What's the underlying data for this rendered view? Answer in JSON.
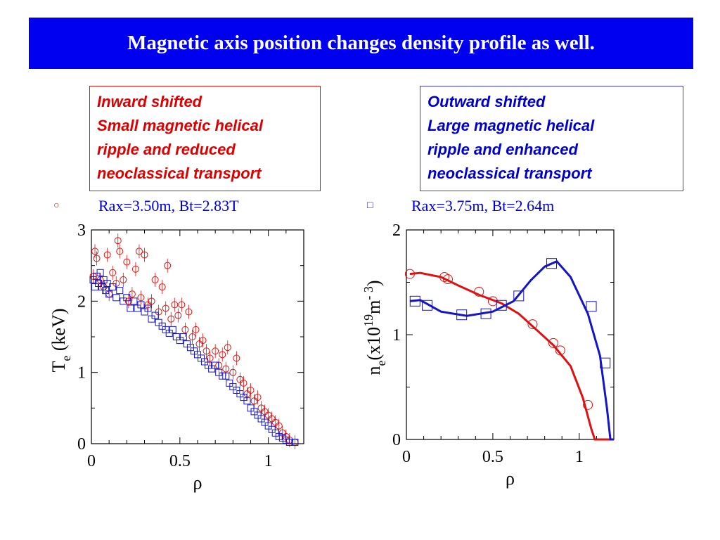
{
  "header": {
    "title": "Magnetic axis position changes density profile as well."
  },
  "boxes": {
    "inward": {
      "lines": [
        "Inward shifted",
        "Small magnetic helical",
        "ripple and reduced",
        "neoclassical transport"
      ]
    },
    "outward": {
      "lines": [
        "Outward shifted",
        "Large magnetic helical",
        "ripple and enhanced",
        "neoclassical transport"
      ]
    }
  },
  "legend": {
    "left": {
      "marker": "○",
      "label": "Rax=3.50m, Bt=2.83T"
    },
    "right": {
      "marker": "□",
      "label": "Rax=3.75m, Bt=2.64m"
    }
  },
  "colors": {
    "banner": "#0000f0",
    "red": "#e01010",
    "blue": "#1414c8"
  },
  "chart_data": [
    {
      "type": "scatter",
      "title": "",
      "xlabel": "ρ",
      "ylabel_main": "T",
      "ylabel_sub": "e",
      "ylabel_tail": " (keV)",
      "xlim": [
        0,
        1.2
      ],
      "ylim": [
        0,
        3
      ],
      "xticks": [
        0,
        0.5,
        1
      ],
      "xtick_labels": [
        "0",
        "0.5",
        "1"
      ],
      "yticks": [
        0,
        1,
        2,
        3
      ],
      "ytick_labels": [
        "0",
        "1",
        "2",
        "3"
      ],
      "grid": false,
      "series": [
        {
          "marker": "circle",
          "color": "#e01010",
          "points": [
            [
              0.01,
              2.35
            ],
            [
              0.02,
              2.7
            ],
            [
              0.03,
              2.6
            ],
            [
              0.05,
              2.3
            ],
            [
              0.07,
              2.2
            ],
            [
              0.09,
              2.65
            ],
            [
              0.1,
              2.1
            ],
            [
              0.12,
              2.4
            ],
            [
              0.14,
              2.25
            ],
            [
              0.15,
              2.85
            ],
            [
              0.16,
              2.7
            ],
            [
              0.18,
              2.3
            ],
            [
              0.2,
              2.55
            ],
            [
              0.21,
              2.0
            ],
            [
              0.23,
              2.1
            ],
            [
              0.25,
              2.45
            ],
            [
              0.27,
              2.7
            ],
            [
              0.28,
              2.05
            ],
            [
              0.3,
              2.65
            ],
            [
              0.32,
              1.95
            ],
            [
              0.34,
              2.0
            ],
            [
              0.36,
              2.3
            ],
            [
              0.38,
              1.85
            ],
            [
              0.4,
              2.2
            ],
            [
              0.42,
              1.9
            ],
            [
              0.43,
              2.5
            ],
            [
              0.45,
              1.75
            ],
            [
              0.47,
              1.95
            ],
            [
              0.49,
              1.8
            ],
            [
              0.51,
              1.95
            ],
            [
              0.53,
              1.6
            ],
            [
              0.55,
              1.85
            ],
            [
              0.57,
              1.5
            ],
            [
              0.59,
              1.6
            ],
            [
              0.61,
              1.4
            ],
            [
              0.63,
              1.45
            ],
            [
              0.65,
              1.3
            ],
            [
              0.67,
              1.2
            ],
            [
              0.7,
              1.3
            ],
            [
              0.72,
              1.1
            ],
            [
              0.74,
              1.25
            ],
            [
              0.76,
              1.05
            ],
            [
              0.77,
              1.35
            ],
            [
              0.8,
              1.0
            ],
            [
              0.82,
              1.2
            ],
            [
              0.84,
              0.9
            ],
            [
              0.86,
              0.85
            ],
            [
              0.88,
              0.7
            ],
            [
              0.9,
              0.75
            ],
            [
              0.92,
              0.6
            ],
            [
              0.94,
              0.65
            ],
            [
              0.96,
              0.5
            ],
            [
              0.98,
              0.45
            ],
            [
              1.0,
              0.4
            ],
            [
              1.02,
              0.35
            ],
            [
              1.04,
              0.3
            ],
            [
              1.06,
              0.25
            ],
            [
              1.08,
              0.15
            ],
            [
              1.1,
              0.1
            ],
            [
              1.12,
              0.05
            ],
            [
              1.15,
              0.02
            ]
          ]
        },
        {
          "marker": "square",
          "color": "#1414c8",
          "points": [
            [
              0.01,
              2.3
            ],
            [
              0.02,
              2.2
            ],
            [
              0.03,
              2.35
            ],
            [
              0.04,
              2.25
            ],
            [
              0.05,
              2.4
            ],
            [
              0.06,
              2.2
            ],
            [
              0.07,
              2.3
            ],
            [
              0.08,
              2.15
            ],
            [
              0.09,
              2.25
            ],
            [
              0.1,
              2.1
            ],
            [
              0.12,
              2.2
            ],
            [
              0.14,
              2.05
            ],
            [
              0.16,
              2.15
            ],
            [
              0.18,
              2.0
            ],
            [
              0.2,
              2.05
            ],
            [
              0.22,
              1.9
            ],
            [
              0.24,
              2.0
            ],
            [
              0.26,
              1.9
            ],
            [
              0.28,
              1.95
            ],
            [
              0.3,
              1.85
            ],
            [
              0.32,
              1.9
            ],
            [
              0.34,
              1.75
            ],
            [
              0.36,
              1.8
            ],
            [
              0.38,
              1.7
            ],
            [
              0.4,
              1.65
            ],
            [
              0.42,
              1.6
            ],
            [
              0.44,
              1.55
            ],
            [
              0.46,
              1.6
            ],
            [
              0.48,
              1.5
            ],
            [
              0.5,
              1.45
            ],
            [
              0.52,
              1.5
            ],
            [
              0.54,
              1.4
            ],
            [
              0.56,
              1.35
            ],
            [
              0.58,
              1.3
            ],
            [
              0.6,
              1.25
            ],
            [
              0.62,
              1.2
            ],
            [
              0.64,
              1.15
            ],
            [
              0.66,
              1.1
            ],
            [
              0.68,
              1.05
            ],
            [
              0.7,
              1.1
            ],
            [
              0.72,
              1.0
            ],
            [
              0.74,
              0.95
            ],
            [
              0.76,
              0.95
            ],
            [
              0.78,
              0.85
            ],
            [
              0.8,
              0.8
            ],
            [
              0.82,
              0.75
            ],
            [
              0.84,
              0.7
            ],
            [
              0.86,
              0.65
            ],
            [
              0.88,
              0.6
            ],
            [
              0.9,
              0.5
            ],
            [
              0.92,
              0.45
            ],
            [
              0.94,
              0.4
            ],
            [
              0.96,
              0.35
            ],
            [
              0.98,
              0.3
            ],
            [
              1.0,
              0.25
            ],
            [
              1.02,
              0.2
            ],
            [
              1.04,
              0.15
            ],
            [
              1.06,
              0.1
            ],
            [
              1.08,
              0.08
            ],
            [
              1.1,
              0.05
            ],
            [
              1.12,
              0.02
            ],
            [
              1.15,
              0.02
            ]
          ]
        }
      ]
    },
    {
      "type": "line",
      "title": "",
      "xlabel": "ρ",
      "ylabel_main": "n",
      "ylabel_sub": "e",
      "ylabel_mid": "(x10",
      "ylabel_exp": "19",
      "ylabel_m": "m",
      "ylabel_exp2": "- 3",
      "ylabel_end": ")",
      "xlim": [
        0,
        1.2
      ],
      "ylim": [
        0,
        2
      ],
      "xticks": [
        0,
        0.5,
        1
      ],
      "xtick_labels": [
        "0",
        "0.5",
        "1"
      ],
      "yticks": [
        0,
        1,
        2
      ],
      "ytick_labels": [
        "0",
        "1",
        "2"
      ],
      "grid": false,
      "series": [
        {
          "color": "#e01010",
          "line": [
            [
              0.02,
              1.58
            ],
            [
              0.08,
              1.59
            ],
            [
              0.2,
              1.55
            ],
            [
              0.3,
              1.47
            ],
            [
              0.42,
              1.38
            ],
            [
              0.55,
              1.3
            ],
            [
              0.65,
              1.2
            ],
            [
              0.75,
              1.05
            ],
            [
              0.85,
              0.9
            ],
            [
              0.95,
              0.7
            ],
            [
              1.02,
              0.4
            ],
            [
              1.07,
              0.1
            ],
            [
              1.09,
              0.0
            ],
            [
              1.2,
              0.0
            ]
          ],
          "marker": "circle",
          "points": [
            [
              0.02,
              1.58
            ],
            [
              0.22,
              1.55
            ],
            [
              0.24,
              1.53
            ],
            [
              0.42,
              1.41
            ],
            [
              0.5,
              1.32
            ],
            [
              0.73,
              1.1
            ],
            [
              0.85,
              0.92
            ],
            [
              0.89,
              0.85
            ],
            [
              1.05,
              0.33
            ]
          ]
        },
        {
          "color": "#1414c8",
          "line": [
            [
              0.02,
              1.32
            ],
            [
              0.08,
              1.33
            ],
            [
              0.2,
              1.22
            ],
            [
              0.35,
              1.18
            ],
            [
              0.5,
              1.22
            ],
            [
              0.62,
              1.32
            ],
            [
              0.72,
              1.52
            ],
            [
              0.8,
              1.65
            ],
            [
              0.87,
              1.7
            ],
            [
              0.95,
              1.55
            ],
            [
              1.05,
              1.2
            ],
            [
              1.12,
              0.8
            ],
            [
              1.16,
              0.3
            ],
            [
              1.18,
              0.0
            ],
            [
              1.2,
              0.0
            ]
          ],
          "marker": "square",
          "points": [
            [
              0.05,
              1.32
            ],
            [
              0.12,
              1.28
            ],
            [
              0.32,
              1.19
            ],
            [
              0.46,
              1.2
            ],
            [
              0.55,
              1.28
            ],
            [
              0.65,
              1.37
            ],
            [
              0.84,
              1.68
            ],
            [
              1.07,
              1.27
            ],
            [
              1.15,
              0.73
            ]
          ]
        }
      ]
    }
  ]
}
